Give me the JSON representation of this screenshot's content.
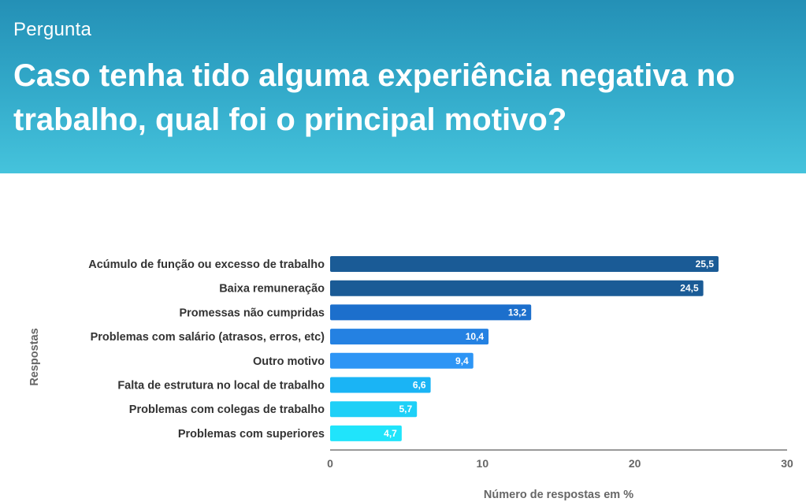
{
  "header": {
    "kicker": "Pergunta",
    "title": "Caso tenha tido alguma experiência negativa no trabalho, qual foi o principal motivo?"
  },
  "chart_data": {
    "type": "bar",
    "orientation": "horizontal",
    "title": "Caso tenha tido alguma experiência negativa no trabalho, qual foi o principal motivo?",
    "xlabel": "Número de respostas em %",
    "ylabel": "Respostas",
    "xlim": [
      0,
      30
    ],
    "xticks": [
      0,
      10,
      20,
      30
    ],
    "categories": [
      "Acúmulo de função ou excesso de trabalho",
      "Baixa remuneração",
      "Promessas não cumpridas",
      "Problemas com salário (atrasos, erros, etc)",
      "Outro motivo",
      "Falta de estrutura no local de trabalho",
      "Problemas com colegas de trabalho",
      "Problemas com superiores"
    ],
    "values": [
      25.5,
      24.5,
      13.2,
      10.4,
      9.4,
      6.6,
      5.7,
      4.7
    ],
    "value_labels": [
      "25,5",
      "24,5",
      "13,2",
      "10,4",
      "9,4",
      "6,6",
      "5,7",
      "4,7"
    ],
    "colors": [
      "#1a5b96",
      "#1a5b96",
      "#1c6fcc",
      "#2481e2",
      "#2d95f5",
      "#1ab4f5",
      "#1ed0f7",
      "#20e4fb"
    ]
  }
}
